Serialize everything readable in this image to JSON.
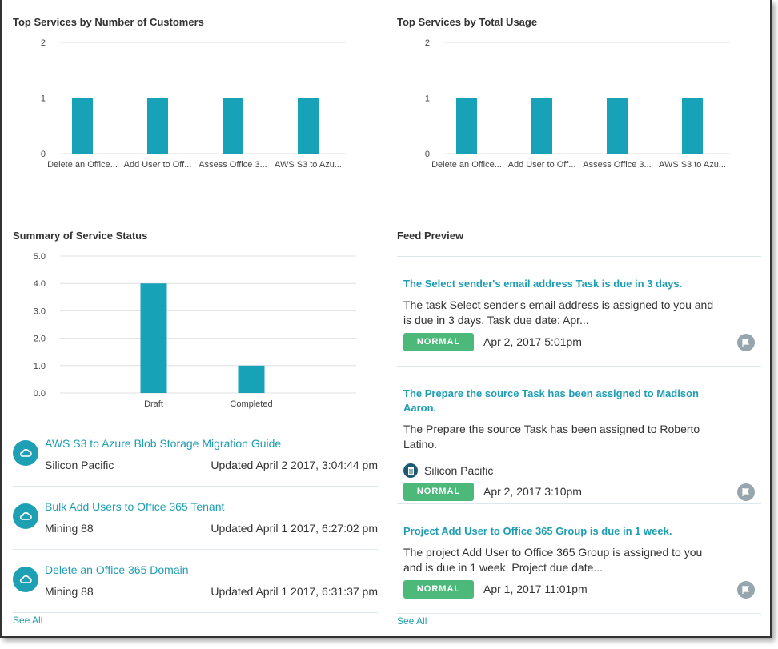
{
  "charts": [
    {
      "title": "Top Services by Number of Customers",
      "type": "bar",
      "categories": [
        "Delete an Office...",
        "Add User to Off...",
        "Assess Office 3...",
        "AWS S3 to Azu..."
      ],
      "values": [
        1,
        1,
        1,
        1
      ],
      "ylim": [
        0,
        2
      ],
      "ticks": [
        "0",
        "1",
        "2"
      ],
      "color": "#17a2b8"
    },
    {
      "title": "Top Services by Total Usage",
      "type": "bar",
      "categories": [
        "Delete an Office...",
        "Add User to Off...",
        "Assess Office 3...",
        "AWS S3 to Azu..."
      ],
      "values": [
        1,
        1,
        1,
        1
      ],
      "ylim": [
        0,
        2
      ],
      "ticks": [
        "0",
        "1",
        "2"
      ],
      "color": "#17a2b8"
    },
    {
      "title": "Summary of Service Status",
      "type": "bar",
      "categories": [
        "Draft",
        "Completed"
      ],
      "values": [
        4,
        1
      ],
      "ylim": [
        0,
        5
      ],
      "ticks": [
        "0.0",
        "1.0",
        "2.0",
        "3.0",
        "4.0",
        "5.0"
      ],
      "color": "#17a2b8"
    }
  ],
  "records": [
    {
      "name": "AWS S3 to Azure Blob Storage Migration Guide",
      "account": "Silicon Pacific",
      "updated": "Updated April 2 2017, 3:04:44 pm"
    },
    {
      "name": "Bulk Add Users to Office 365 Tenant",
      "account": "Mining 88",
      "updated": "Updated April 1 2017, 6:27:02 pm"
    },
    {
      "name": "Delete an Office 365 Domain",
      "account": "Mining 88",
      "updated": "Updated April 1 2017, 6:31:37 pm"
    }
  ],
  "records_see_all": "See All",
  "feed": {
    "title": "Feed Preview",
    "see_all": "See All",
    "items": [
      {
        "heading": "The Select sender's email address Task is due in 3 days.",
        "body": "The task Select sender's email address is assigned to you and is due in 3 days. Task due date: Apr...",
        "priority": "NORMAL",
        "date": "Apr 2, 2017 5:01pm"
      },
      {
        "heading": "The Prepare the source Task has been assigned to Madison Aaron.",
        "body": "The Prepare the source Task has been assigned to Roberto Latino.",
        "account": "Silicon Pacific",
        "priority": "NORMAL",
        "date": "Apr 2, 2017 3:10pm"
      },
      {
        "heading": "Project Add User to Office 365 Group is due in 1 week.",
        "body": "The project Add User to Office 365 Group is assigned to you and is due in 1 week. Project due date...",
        "priority": "NORMAL",
        "date": "Apr 1, 2017 11:01pm"
      }
    ]
  }
}
